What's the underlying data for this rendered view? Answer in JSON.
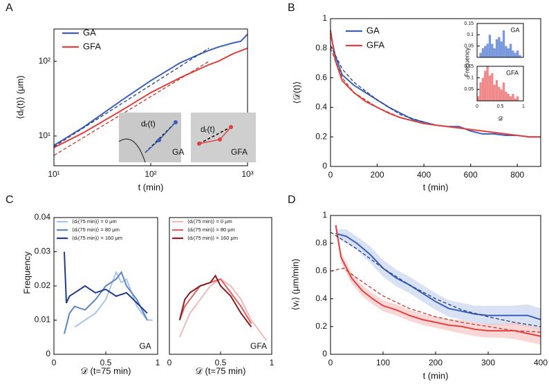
{
  "chart_data": [
    {
      "type": "line",
      "panel": "A",
      "ylabel": "⟨dᵣ(t)⟩  (μm)",
      "xlabel": "t (min)",
      "xscale": "log",
      "yscale": "log",
      "xlim": [
        10,
        1000
      ],
      "ylim": [
        4,
        270
      ],
      "xticks": [
        {
          "value": 10,
          "label": "10¹"
        },
        {
          "value": 100,
          "label": "10²"
        },
        {
          "value": 1000,
          "label": "10³"
        }
      ],
      "yticks": [
        {
          "value": 10,
          "label": "10¹"
        },
        {
          "value": 100,
          "label": "10²"
        }
      ],
      "legend": "upper left",
      "annotations": [
        "dᵣ(t)",
        "GA",
        "dᵣ(t)",
        "GFA"
      ],
      "series": [
        {
          "name": "GA",
          "color": "#3a5fb8",
          "x": [
            10,
            20,
            50,
            100,
            200,
            300,
            400,
            500,
            700,
            850,
            1000
          ],
          "values": [
            7.5,
            13,
            30,
            55,
            95,
            120,
            140,
            155,
            175,
            185,
            230
          ]
        },
        {
          "name": "GFA",
          "color": "#e0413f",
          "x": [
            10,
            20,
            50,
            100,
            200,
            300,
            400,
            500,
            700,
            850,
            1000
          ],
          "values": [
            7,
            11,
            22,
            38,
            60,
            76,
            90,
            100,
            125,
            138,
            150
          ]
        },
        {
          "color": "#2a3f7a",
          "dash": true,
          "x": [
            10,
            400
          ],
          "values": [
            7.2,
            150
          ]
        },
        {
          "color": "#c0392b",
          "dash": true,
          "x": [
            10,
            400
          ],
          "values": [
            5.5,
            100
          ]
        }
      ]
    },
    {
      "type": "line",
      "panel": "B",
      "ylabel": "⟨𝒟(t)⟩",
      "xlabel": "t (min)",
      "xlim": [
        0,
        900
      ],
      "ylim": [
        0,
        1
      ],
      "xticks": [
        0,
        200,
        400,
        600,
        800
      ],
      "yticks": [
        0,
        0.2,
        0.4,
        0.6,
        0.8,
        1
      ],
      "legend": "upper left",
      "series": [
        {
          "name": "GA",
          "color": "#3a5fb8",
          "x": [
            0,
            20,
            50,
            100,
            150,
            200,
            250,
            300,
            350,
            400,
            450,
            500,
            550,
            600,
            650,
            700,
            750,
            800,
            850,
            900
          ],
          "values": [
            0.9,
            0.75,
            0.62,
            0.55,
            0.5,
            0.45,
            0.4,
            0.36,
            0.32,
            0.3,
            0.28,
            0.27,
            0.27,
            0.24,
            0.22,
            0.22,
            0.21,
            0.21,
            0.2,
            0.2
          ]
        },
        {
          "name": "GFA",
          "color": "#e0413f",
          "x": [
            0,
            20,
            50,
            100,
            150,
            200,
            250,
            300,
            350,
            400,
            450,
            500,
            550,
            600,
            650,
            700,
            750,
            800,
            850,
            900
          ],
          "values": [
            0.92,
            0.72,
            0.58,
            0.5,
            0.44,
            0.4,
            0.36,
            0.33,
            0.31,
            0.29,
            0.28,
            0.27,
            0.26,
            0.25,
            0.24,
            0.23,
            0.22,
            0.21,
            0.2,
            0.2
          ]
        },
        {
          "color": "#2a3f7a",
          "dash": true,
          "x": [
            0,
            50,
            100,
            200,
            300,
            400
          ],
          "values": [
            0.82,
            0.66,
            0.57,
            0.45,
            0.35,
            0.3
          ]
        },
        {
          "color": "#c0392b",
          "dash": true,
          "x": [
            0,
            50,
            100,
            200,
            300,
            400
          ],
          "values": [
            0.8,
            0.6,
            0.5,
            0.4,
            0.33,
            0.29
          ]
        }
      ]
    },
    {
      "type": "histogram",
      "label": "GA",
      "ylabel": "Frequency",
      "xlim": [
        0,
        1
      ],
      "ylim": [
        0,
        0.15
      ],
      "yticks": [
        0.05,
        0.1,
        0.15
      ],
      "color": "#7a98dc",
      "bins": [
        0,
        0.05,
        0.1,
        0.15,
        0.2,
        0.25,
        0.3,
        0.35,
        0.4,
        0.45,
        0.5,
        0.55,
        0.6,
        0.65,
        0.7,
        0.75,
        0.8,
        0.85,
        0.9,
        0.95,
        1
      ],
      "values": [
        0,
        0.02,
        0.04,
        0.05,
        0.06,
        0.1,
        0.06,
        0.04,
        0.08,
        0.09,
        0.07,
        0.12,
        0.05,
        0.04,
        0.06,
        0.03,
        0.02,
        0.03,
        0.01,
        0
      ]
    },
    {
      "type": "histogram",
      "label": "GFA",
      "xlabel": "𝒟",
      "xlim": [
        0,
        1
      ],
      "ylim": [
        0,
        0.15
      ],
      "xticks": [
        0,
        0.5,
        1
      ],
      "yticks": [
        0.05,
        0.1,
        0.15
      ],
      "color": "#f08a8a",
      "bins": [
        0,
        0.05,
        0.1,
        0.15,
        0.2,
        0.25,
        0.3,
        0.35,
        0.4,
        0.45,
        0.5,
        0.55,
        0.6,
        0.65,
        0.7,
        0.75,
        0.8,
        0.85,
        0.9,
        0.95,
        1
      ],
      "values": [
        0.02,
        0.08,
        0.1,
        0.13,
        0.15,
        0.11,
        0.12,
        0.07,
        0.09,
        0.06,
        0.05,
        0.08,
        0.04,
        0.03,
        0.02,
        0.03,
        0.01,
        0.02,
        0,
        0
      ]
    },
    {
      "type": "line",
      "panel": "C",
      "ylabel": "Frequency",
      "xlabel": "𝒟 (t=75 min)",
      "label": "GA",
      "xlim": [
        0,
        1
      ],
      "ylim": [
        0,
        0.04
      ],
      "xticks": [
        0,
        0.5,
        1
      ],
      "yticks": [
        0,
        0.01,
        0.02,
        0.03,
        0.04
      ],
      "legend": "upper left",
      "series": [
        {
          "name": "⟨dᵣ(75 min)⟩ = 0 μm",
          "color": "#a9c3ea",
          "x": [
            0.2,
            0.3,
            0.4,
            0.5,
            0.55,
            0.6,
            0.65,
            0.7,
            0.75,
            0.8,
            0.85,
            0.9,
            0.95
          ],
          "values": [
            0.008,
            0.01,
            0.012,
            0.016,
            0.02,
            0.024,
            0.021,
            0.022,
            0.018,
            0.014,
            0.012,
            0.01,
            0.01
          ]
        },
        {
          "name": "⟨dᵣ(75 min)⟩ = 80 μm",
          "color": "#5b86c6",
          "x": [
            0.1,
            0.15,
            0.2,
            0.3,
            0.4,
            0.5,
            0.6,
            0.65,
            0.7,
            0.8,
            0.9
          ],
          "values": [
            0.006,
            0.012,
            0.014,
            0.013,
            0.016,
            0.02,
            0.022,
            0.024,
            0.02,
            0.016,
            0.01
          ]
        },
        {
          "name": "⟨dᵣ(75 min)⟩ = 160 μm",
          "color": "#1f3b8a",
          "x": [
            0.1,
            0.12,
            0.15,
            0.2,
            0.3,
            0.4,
            0.5,
            0.6,
            0.7,
            0.8,
            0.9
          ],
          "values": [
            0.03,
            0.015,
            0.017,
            0.018,
            0.02,
            0.018,
            0.019,
            0.017,
            0.018,
            0.015,
            0.012
          ]
        }
      ]
    },
    {
      "type": "line",
      "xlabel": "𝒟 (t=75 min)",
      "label": "GFA",
      "xlim": [
        0,
        1
      ],
      "ylim": [
        0,
        0.04
      ],
      "xticks": [
        0,
        0.5,
        1
      ],
      "legend": "upper left",
      "series": [
        {
          "name": "⟨dᵣ(75 min)⟩ = 0 μm",
          "color": "#f2b8b8",
          "x": [
            0.1,
            0.2,
            0.3,
            0.4,
            0.5,
            0.6,
            0.7,
            0.8,
            0.9,
            0.95
          ],
          "values": [
            0.005,
            0.012,
            0.016,
            0.02,
            0.022,
            0.02,
            0.016,
            0.01,
            0.006,
            0.004
          ]
        },
        {
          "name": "⟨dᵣ(75 min)⟩ = 80 μm",
          "color": "#e06060",
          "x": [
            0.1,
            0.15,
            0.2,
            0.3,
            0.4,
            0.5,
            0.6,
            0.7,
            0.8
          ],
          "values": [
            0.01,
            0.014,
            0.016,
            0.02,
            0.021,
            0.022,
            0.018,
            0.014,
            0.009
          ]
        },
        {
          "name": "⟨dᵣ(75 min)⟩ = 160 μm",
          "color": "#8b1a1a",
          "x": [
            0.1,
            0.15,
            0.2,
            0.3,
            0.4,
            0.45,
            0.5,
            0.6,
            0.7,
            0.8
          ],
          "values": [
            0.01,
            0.016,
            0.018,
            0.02,
            0.021,
            0.023,
            0.02,
            0.017,
            0.012,
            0.008
          ]
        }
      ]
    },
    {
      "type": "line",
      "panel": "D",
      "ylabel": "⟨vᵣ⟩  (μm/min)",
      "xlabel": "t (min)",
      "xlim": [
        0,
        400
      ],
      "ylim": [
        0,
        1
      ],
      "xticks": [
        0,
        100,
        200,
        300,
        400
      ],
      "yticks": [
        0,
        0.2,
        0.4,
        0.6,
        0.8,
        1
      ],
      "series": [
        {
          "color": "#3a5fb8",
          "band_color": "#c9d5f0",
          "x": [
            10,
            30,
            50,
            75,
            100,
            125,
            150,
            175,
            200,
            225,
            250,
            275,
            300,
            325,
            350,
            375,
            400
          ],
          "values": [
            0.87,
            0.85,
            0.8,
            0.72,
            0.62,
            0.55,
            0.5,
            0.44,
            0.38,
            0.33,
            0.31,
            0.29,
            0.28,
            0.28,
            0.28,
            0.28,
            0.25
          ],
          "lower": [
            0.84,
            0.8,
            0.75,
            0.66,
            0.56,
            0.49,
            0.44,
            0.38,
            0.32,
            0.27,
            0.25,
            0.23,
            0.21,
            0.21,
            0.21,
            0.2,
            0.17
          ],
          "upper": [
            0.9,
            0.9,
            0.85,
            0.78,
            0.68,
            0.61,
            0.56,
            0.5,
            0.44,
            0.39,
            0.37,
            0.35,
            0.35,
            0.35,
            0.35,
            0.36,
            0.33
          ]
        },
        {
          "color": "#e0413f",
          "band_color": "#f5c6c5",
          "x": [
            10,
            20,
            40,
            60,
            80,
            100,
            125,
            150,
            175,
            200,
            225,
            250,
            275,
            300,
            325,
            350,
            375,
            400
          ],
          "values": [
            0.93,
            0.7,
            0.55,
            0.46,
            0.4,
            0.35,
            0.32,
            0.28,
            0.25,
            0.23,
            0.21,
            0.2,
            0.18,
            0.17,
            0.17,
            0.17,
            0.15,
            0.13
          ],
          "lower": [
            0.9,
            0.66,
            0.51,
            0.42,
            0.36,
            0.31,
            0.28,
            0.24,
            0.21,
            0.19,
            0.17,
            0.15,
            0.13,
            0.12,
            0.12,
            0.11,
            0.09,
            0.07
          ],
          "upper": [
            0.96,
            0.74,
            0.59,
            0.5,
            0.44,
            0.39,
            0.36,
            0.32,
            0.29,
            0.27,
            0.25,
            0.25,
            0.23,
            0.22,
            0.22,
            0.23,
            0.21,
            0.19
          ]
        },
        {
          "color": "#2a3f7a",
          "dash": true,
          "x": [
            0,
            50,
            100,
            150,
            200,
            250,
            300,
            350,
            400
          ],
          "values": [
            0.88,
            0.76,
            0.62,
            0.5,
            0.4,
            0.32,
            0.27,
            0.23,
            0.2
          ]
        },
        {
          "color": "#c0392b",
          "dash": true,
          "x": [
            0,
            25,
            50,
            100,
            150,
            200,
            250,
            300,
            350,
            400
          ],
          "values": [
            0.6,
            0.62,
            0.55,
            0.42,
            0.33,
            0.27,
            0.23,
            0.2,
            0.17,
            0.16
          ]
        }
      ]
    }
  ]
}
